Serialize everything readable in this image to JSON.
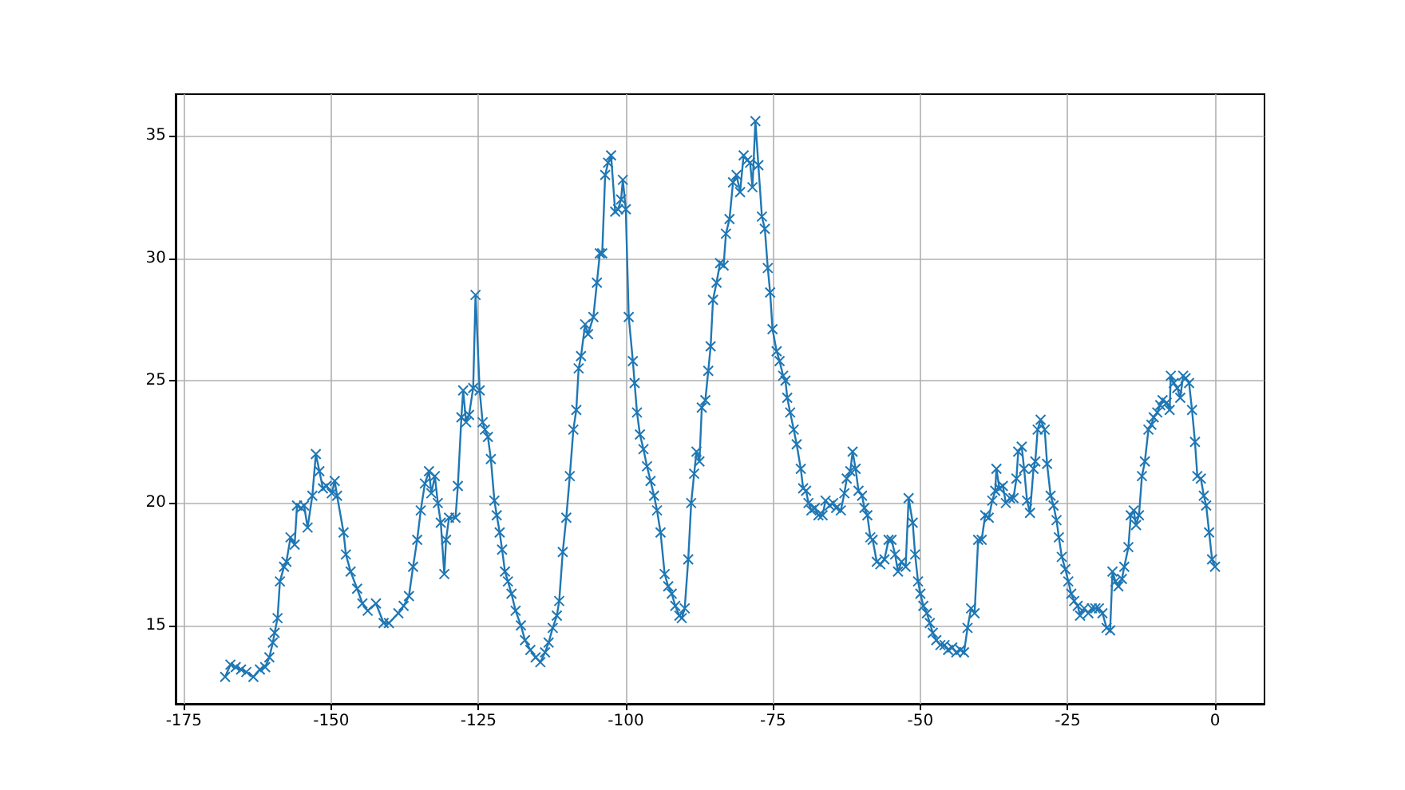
{
  "chart_data": {
    "type": "line",
    "color": "#1f77b4",
    "marker": "cross",
    "line_style": "solid",
    "grid": true,
    "xlim": [
      -176.4,
      8.4
    ],
    "ylim": [
      11.8,
      36.7
    ],
    "xticks": [
      -175,
      -150,
      -125,
      -100,
      -75,
      -50,
      -25,
      0
    ],
    "yticks": [
      15,
      20,
      25,
      30,
      35
    ],
    "x": [
      -168.0,
      -167.1,
      -166.2,
      -165.3,
      -164.4,
      -163.2,
      -162.1,
      -161.2,
      -160.5,
      -159.9,
      -159.6,
      -159.1,
      -158.7,
      -158.0,
      -157.6,
      -156.9,
      -156.2,
      -155.8,
      -155.1,
      -154.6,
      -154.0,
      -153.2,
      -152.6,
      -152.0,
      -151.4,
      -150.8,
      -149.9,
      -149.4,
      -149.0,
      -147.9,
      -147.5,
      -146.7,
      -145.6,
      -144.7,
      -143.8,
      -142.4,
      -141.1,
      -140.2,
      -138.6,
      -137.7,
      -136.8,
      -136.1,
      -135.4,
      -134.8,
      -134.1,
      -133.4,
      -133.0,
      -132.4,
      -131.9,
      -131.4,
      -130.8,
      -130.5,
      -130.0,
      -128.9,
      -128.5,
      -127.9,
      -127.6,
      -127.1,
      -126.6,
      -125.9,
      -125.5,
      -124.8,
      -124.3,
      -123.9,
      -123.4,
      -122.9,
      -122.3,
      -121.9,
      -121.4,
      -121.0,
      -120.5,
      -120.0,
      -119.4,
      -118.7,
      -117.8,
      -117.1,
      -116.2,
      -115.3,
      -114.5,
      -113.7,
      -113.1,
      -112.4,
      -111.7,
      -111.3,
      -110.7,
      -110.1,
      -109.5,
      -108.9,
      -108.4,
      -108.0,
      -107.6,
      -106.9,
      -106.4,
      -105.5,
      -104.9,
      -104.4,
      -104.0,
      -103.5,
      -103.0,
      -102.5,
      -101.8,
      -101.3,
      -100.8,
      -100.5,
      -100.0,
      -99.5,
      -98.8,
      -98.5,
      -98.1,
      -97.6,
      -97.0,
      -96.4,
      -95.8,
      -95.2,
      -94.7,
      -94.1,
      -93.4,
      -92.8,
      -92.2,
      -91.6,
      -90.9,
      -90.5,
      -90.0,
      -89.4,
      -88.9,
      -88.4,
      -88.0,
      -87.5,
      -87.1,
      -86.5,
      -86.0,
      -85.6,
      -85.2,
      -84.6,
      -84.0,
      -83.4,
      -83.0,
      -82.4,
      -81.8,
      -81.2,
      -80.6,
      -80.0,
      -79.4,
      -78.9,
      -78.5,
      -78.0,
      -77.5,
      -76.9,
      -76.4,
      -75.9,
      -75.5,
      -75.1,
      -74.4,
      -73.9,
      -73.3,
      -72.9,
      -72.6,
      -72.1,
      -71.5,
      -71.0,
      -70.3,
      -69.9,
      -69.4,
      -69.0,
      -68.5,
      -67.9,
      -67.3,
      -66.6,
      -66.1,
      -65.4,
      -64.8,
      -64.3,
      -63.5,
      -62.9,
      -62.5,
      -61.9,
      -61.5,
      -61.0,
      -60.5,
      -59.9,
      -59.5,
      -59.0,
      -58.5,
      -58.1,
      -57.4,
      -56.8,
      -56.1,
      -55.4,
      -54.9,
      -54.3,
      -53.8,
      -53.2,
      -52.5,
      -52.0,
      -51.3,
      -50.9,
      -50.4,
      -50.0,
      -49.5,
      -48.9,
      -48.4,
      -47.9,
      -47.3,
      -46.6,
      -45.9,
      -45.3,
      -44.6,
      -43.9,
      -43.2,
      -42.6,
      -42.0,
      -41.4,
      -40.8,
      -40.2,
      -39.6,
      -39.0,
      -38.4,
      -37.8,
      -37.3,
      -37.1,
      -36.6,
      -36.0,
      -35.5,
      -34.8,
      -34.2,
      -33.7,
      -33.4,
      -32.8,
      -32.4,
      -31.9,
      -31.4,
      -30.8,
      -30.5,
      -30.1,
      -29.6,
      -28.9,
      -28.5,
      -27.9,
      -27.4,
      -26.9,
      -26.5,
      -26.0,
      -25.4,
      -24.9,
      -24.4,
      -23.9,
      -23.3,
      -22.9,
      -22.2,
      -21.5,
      -20.9,
      -20.3,
      -19.7,
      -19.1,
      -18.4,
      -17.8,
      -17.4,
      -16.9,
      -16.4,
      -15.8,
      -15.4,
      -14.7,
      -14.3,
      -13.8,
      -13.4,
      -12.9,
      -12.4,
      -11.9,
      -11.3,
      -10.8,
      -10.4,
      -9.8,
      -9.3,
      -8.9,
      -8.2,
      -7.7,
      -7.5,
      -7.0,
      -6.4,
      -5.9,
      -5.4,
      -5.0,
      -4.4,
      -3.9,
      -3.4,
      -3.0,
      -2.4,
      -1.9,
      -1.5,
      -1.0,
      -0.5,
      0.0
    ],
    "values": [
      12.9,
      13.4,
      13.3,
      13.2,
      13.1,
      12.9,
      13.2,
      13.3,
      13.7,
      14.3,
      14.7,
      15.3,
      16.8,
      17.4,
      17.6,
      18.6,
      18.3,
      19.9,
      19.8,
      19.9,
      19.0,
      20.3,
      22.0,
      21.3,
      20.6,
      20.7,
      20.4,
      20.9,
      20.3,
      18.8,
      17.9,
      17.2,
      16.5,
      15.9,
      15.6,
      15.9,
      15.1,
      15.1,
      15.5,
      15.8,
      16.2,
      17.4,
      18.5,
      19.7,
      20.8,
      21.3,
      20.4,
      21.1,
      20.0,
      19.2,
      17.1,
      18.5,
      19.4,
      19.4,
      20.7,
      23.5,
      24.6,
      23.3,
      23.6,
      24.7,
      28.5,
      24.6,
      23.3,
      23.0,
      22.7,
      21.8,
      20.1,
      19.5,
      18.8,
      18.1,
      17.2,
      16.8,
      16.3,
      15.6,
      15.0,
      14.4,
      14.0,
      13.7,
      13.5,
      13.9,
      14.3,
      14.9,
      15.4,
      16.0,
      18.0,
      19.4,
      21.1,
      23.0,
      23.8,
      25.5,
      26.0,
      27.3,
      26.9,
      27.6,
      29.0,
      30.2,
      30.2,
      33.4,
      33.9,
      34.2,
      31.9,
      32.0,
      32.4,
      33.2,
      32.0,
      27.6,
      25.8,
      24.9,
      23.7,
      22.8,
      22.2,
      21.5,
      20.9,
      20.3,
      19.7,
      18.8,
      17.1,
      16.6,
      16.3,
      15.8,
      15.4,
      15.3,
      15.7,
      17.7,
      20.0,
      21.2,
      22.1,
      21.7,
      23.9,
      24.2,
      25.4,
      26.4,
      28.3,
      29.0,
      29.8,
      29.7,
      31.0,
      31.6,
      33.1,
      33.4,
      32.7,
      34.2,
      34.0,
      33.9,
      32.9,
      35.6,
      33.8,
      31.7,
      31.2,
      29.6,
      28.6,
      27.1,
      26.2,
      25.8,
      25.2,
      25.0,
      24.3,
      23.7,
      23.0,
      22.4,
      21.4,
      20.6,
      20.5,
      20.0,
      19.7,
      19.8,
      19.5,
      19.5,
      20.1,
      19.9,
      20.0,
      19.8,
      19.7,
      20.4,
      21.0,
      21.3,
      22.1,
      21.4,
      20.5,
      20.3,
      19.8,
      19.5,
      18.6,
      18.5,
      17.6,
      17.5,
      17.7,
      18.5,
      18.5,
      17.9,
      17.2,
      17.6,
      17.4,
      20.2,
      19.2,
      17.9,
      16.8,
      16.3,
      15.8,
      15.5,
      15.1,
      14.7,
      14.4,
      14.2,
      14.2,
      14.0,
      14.1,
      13.9,
      14.0,
      13.9,
      14.9,
      15.7,
      15.5,
      18.5,
      18.5,
      19.5,
      19.4,
      20.1,
      20.5,
      21.4,
      20.6,
      20.7,
      20.0,
      20.2,
      20.2,
      21.0,
      22.1,
      22.3,
      21.4,
      20.1,
      19.6,
      21.4,
      21.7,
      23.0,
      23.4,
      23.0,
      21.6,
      20.3,
      19.9,
      19.3,
      18.6,
      17.8,
      17.3,
      16.8,
      16.3,
      16.0,
      15.8,
      15.4,
      15.7,
      15.5,
      15.7,
      15.7,
      15.7,
      15.5,
      14.9,
      14.8,
      17.2,
      16.8,
      16.6,
      16.9,
      17.4,
      18.2,
      19.5,
      19.7,
      19.1,
      19.5,
      21.1,
      21.7,
      23.0,
      23.2,
      23.5,
      23.7,
      24.0,
      24.2,
      24.1,
      23.8,
      25.2,
      24.9,
      24.7,
      24.3,
      25.2,
      25.1,
      24.9,
      23.8,
      22.5,
      21.1,
      21.0,
      20.3,
      19.9,
      18.8,
      17.7,
      17.4
    ]
  }
}
